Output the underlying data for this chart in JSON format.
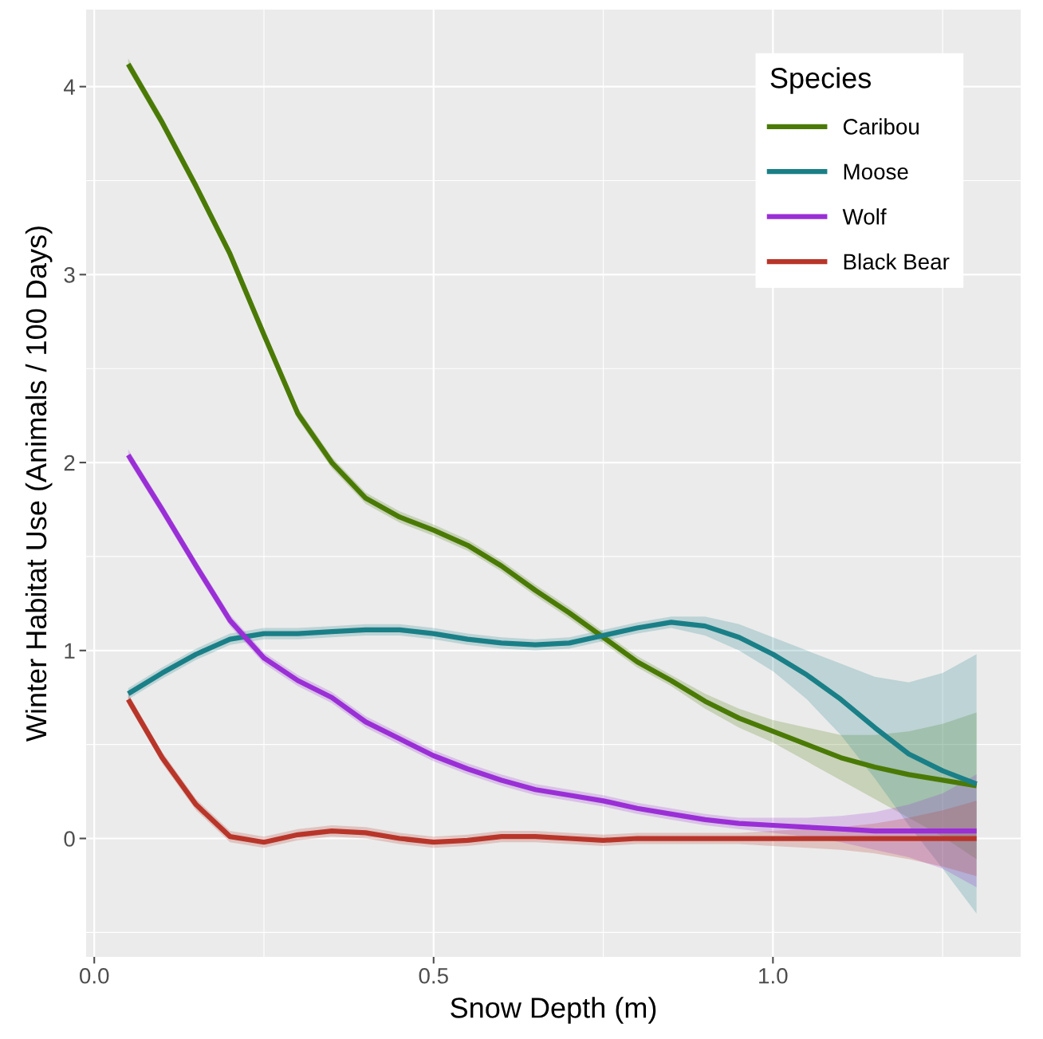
{
  "chart_data": {
    "type": "line",
    "xlabel": "Snow Depth (m)",
    "ylabel": "Winter Habitat Use (Animals / 100 Days)",
    "legend_title": "Species",
    "legend": "top right",
    "grid": true,
    "marker": "none",
    "line_style": "solid",
    "xlim": [
      -0.012,
      1.365
    ],
    "ylim": [
      -0.63,
      4.41
    ],
    "xticks": [
      {
        "value": 0,
        "label": "0.0"
      },
      {
        "value": 0.5,
        "label": "0.5"
      },
      {
        "value": 1,
        "label": "1.0"
      }
    ],
    "yticks": [
      0,
      1,
      2,
      3,
      4
    ],
    "x": [
      0.05,
      0.1,
      0.15,
      0.2,
      0.25,
      0.3,
      0.35,
      0.4,
      0.45,
      0.5,
      0.55,
      0.6,
      0.65,
      0.7,
      0.75,
      0.8,
      0.85,
      0.9,
      0.95,
      1.0,
      1.05,
      1.1,
      1.15,
      1.2,
      1.25,
      1.3
    ],
    "series": [
      {
        "name": "Caribou",
        "color": "#4a7a05",
        "values": [
          4.12,
          3.81,
          3.47,
          3.11,
          2.68,
          2.26,
          2.0,
          1.81,
          1.71,
          1.64,
          1.56,
          1.45,
          1.32,
          1.2,
          1.07,
          0.94,
          0.84,
          0.73,
          0.64,
          0.57,
          0.5,
          0.43,
          0.38,
          0.34,
          0.31,
          0.28
        ],
        "lower": [
          4.09,
          3.78,
          3.44,
          3.08,
          2.65,
          2.23,
          1.97,
          1.78,
          1.68,
          1.61,
          1.53,
          1.42,
          1.29,
          1.17,
          1.04,
          0.91,
          0.81,
          0.69,
          0.59,
          0.51,
          0.41,
          0.31,
          0.21,
          0.11,
          0.01,
          -0.11
        ],
        "upper": [
          4.15,
          3.84,
          3.5,
          3.14,
          2.71,
          2.29,
          2.03,
          1.84,
          1.74,
          1.67,
          1.59,
          1.48,
          1.35,
          1.23,
          1.1,
          0.97,
          0.87,
          0.77,
          0.69,
          0.63,
          0.59,
          0.55,
          0.55,
          0.57,
          0.61,
          0.67
        ]
      },
      {
        "name": "Moose",
        "color": "#1a7f87",
        "values": [
          0.77,
          0.88,
          0.98,
          1.06,
          1.09,
          1.09,
          1.1,
          1.11,
          1.11,
          1.09,
          1.06,
          1.04,
          1.03,
          1.04,
          1.08,
          1.12,
          1.15,
          1.13,
          1.07,
          0.98,
          0.87,
          0.74,
          0.59,
          0.45,
          0.36,
          0.29
        ],
        "lower": [
          0.74,
          0.85,
          0.95,
          1.03,
          1.06,
          1.06,
          1.07,
          1.08,
          1.08,
          1.06,
          1.03,
          1.01,
          1.0,
          1.01,
          1.05,
          1.09,
          1.12,
          1.08,
          1.0,
          0.89,
          0.74,
          0.55,
          0.32,
          0.07,
          -0.16,
          -0.4
        ],
        "upper": [
          0.8,
          0.91,
          1.01,
          1.09,
          1.12,
          1.12,
          1.13,
          1.14,
          1.14,
          1.12,
          1.09,
          1.07,
          1.06,
          1.07,
          1.11,
          1.15,
          1.18,
          1.18,
          1.14,
          1.07,
          1.0,
          0.93,
          0.86,
          0.83,
          0.88,
          0.98
        ]
      },
      {
        "name": "Wolf",
        "color": "#9a2fd6",
        "values": [
          2.04,
          1.75,
          1.45,
          1.16,
          0.96,
          0.84,
          0.75,
          0.62,
          0.53,
          0.44,
          0.37,
          0.31,
          0.26,
          0.23,
          0.2,
          0.16,
          0.13,
          0.1,
          0.08,
          0.07,
          0.06,
          0.05,
          0.04,
          0.04,
          0.04,
          0.04
        ],
        "lower": [
          2.01,
          1.72,
          1.42,
          1.13,
          0.93,
          0.81,
          0.72,
          0.59,
          0.5,
          0.41,
          0.34,
          0.28,
          0.23,
          0.2,
          0.17,
          0.13,
          0.1,
          0.07,
          0.05,
          0.03,
          0.01,
          -0.02,
          -0.06,
          -0.1,
          -0.16,
          -0.26
        ],
        "upper": [
          2.07,
          1.78,
          1.48,
          1.19,
          0.99,
          0.87,
          0.78,
          0.65,
          0.56,
          0.47,
          0.4,
          0.34,
          0.29,
          0.26,
          0.23,
          0.19,
          0.16,
          0.13,
          0.11,
          0.11,
          0.11,
          0.12,
          0.14,
          0.18,
          0.24,
          0.34
        ]
      },
      {
        "name": "Black Bear",
        "color": "#b8352a",
        "values": [
          0.74,
          0.43,
          0.18,
          0.01,
          -0.02,
          0.02,
          0.04,
          0.03,
          0.0,
          -0.02,
          -0.01,
          0.01,
          0.01,
          0.0,
          -0.01,
          0.0,
          0.0,
          0.0,
          0.0,
          0.0,
          0.0,
          0.0,
          0.0,
          0.0,
          0.0,
          0.0
        ],
        "lower": [
          0.71,
          0.4,
          0.15,
          -0.02,
          -0.05,
          -0.01,
          0.01,
          0.0,
          -0.03,
          -0.05,
          -0.04,
          -0.02,
          -0.02,
          -0.03,
          -0.04,
          -0.03,
          -0.03,
          -0.03,
          -0.03,
          -0.04,
          -0.05,
          -0.06,
          -0.08,
          -0.11,
          -0.15,
          -0.2
        ],
        "upper": [
          0.77,
          0.46,
          0.21,
          0.04,
          0.01,
          0.05,
          0.07,
          0.06,
          0.03,
          0.01,
          0.02,
          0.04,
          0.04,
          0.03,
          0.02,
          0.03,
          0.03,
          0.03,
          0.03,
          0.04,
          0.05,
          0.06,
          0.08,
          0.11,
          0.15,
          0.2
        ]
      }
    ]
  }
}
